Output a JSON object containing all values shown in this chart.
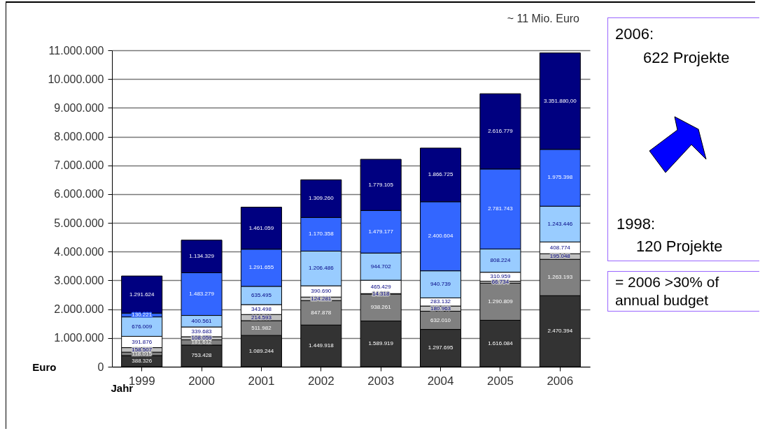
{
  "chart_data": {
    "type": "bar",
    "stacked": true,
    "categories": [
      "1999",
      "2000",
      "2001",
      "2002",
      "2003",
      "2004",
      "2005",
      "2006"
    ],
    "series": [
      {
        "color": "#333333",
        "values": [
          388326,
          753428,
          1089244,
          1449918,
          1589919,
          1297695,
          1616084,
          2470394
        ],
        "value_labels": [
          "388.326",
          "753.428",
          "1.089.244",
          "1.449.918",
          "1.589.919",
          "1.297.695",
          "1.616.084",
          "2.470.394"
        ]
      },
      {
        "color": "#808080",
        "values": [
          118015,
          181612,
          511982,
          847878,
          938261,
          632010,
          1290809,
          1263193
        ],
        "value_labels": [
          "118.015",
          "181.612",
          "511.982",
          "847.878",
          "938.261",
          "632.010",
          "1.290.809",
          "1.263.193"
        ]
      },
      {
        "color": "#c0c0c0",
        "values": [
          158507,
          108059,
          214593,
          124281,
          14318,
          180963,
          66734,
          195048
        ],
        "value_labels": [
          "158.507",
          "108.059",
          "214.593",
          "124.281",
          "14.318",
          "180.963",
          "66.734",
          "195.048"
        ]
      },
      {
        "color": "#ffffff",
        "values": [
          391876,
          339683,
          343498,
          390690,
          465429,
          283132,
          310959,
          408774
        ],
        "value_labels": [
          "391.876",
          "339.683",
          "343.498",
          "390.690",
          "465.429",
          "283.132",
          "310.959",
          "408.774"
        ]
      },
      {
        "color": "#99ccff",
        "values": [
          676009,
          400561,
          635495,
          1206486,
          944702,
          940739,
          808224,
          1243446
        ],
        "value_labels": [
          "676.009",
          "400.561",
          "635.495",
          "1.206.486",
          "944.702",
          "940.739",
          "808.224",
          "1.243.446"
        ]
      },
      {
        "color": "#3366ff",
        "values": [
          130221,
          1483279,
          1291655,
          1170358,
          1479177,
          2400604,
          2781743,
          1975398
        ],
        "value_labels": [
          "130.221",
          "1.483.279",
          "1.291.655",
          "1.170.358",
          "1.479.177",
          "2.400.604",
          "2.781.743",
          "1.975.398"
        ]
      },
      {
        "color": "#000080",
        "values": [
          1291624,
          1134329,
          1461059,
          1309260,
          1779105,
          1866725,
          2616779,
          3351880
        ],
        "value_labels": [
          "1.291.624",
          "1.134.329",
          "1.461.059",
          "1.309.260",
          "1.779.105",
          "1.866.725",
          "2.616.779",
          "3.351.880,00"
        ]
      }
    ],
    "ylim": [
      0,
      11000000
    ],
    "yticks": [
      0,
      {
        "value": 1000000,
        "label": "1.000.000"
      },
      {
        "value": 2000000,
        "label": "2.000.000"
      },
      {
        "value": 3000000,
        "label": "3.000.000"
      },
      {
        "value": 4000000,
        "label": "4.000.000"
      },
      {
        "value": 5000000,
        "label": "5.000.000"
      },
      {
        "value": 6000000,
        "label": "6.000.000"
      },
      {
        "value": 7000000,
        "label": "7.000.000"
      },
      {
        "value": 8000000,
        "label": "8.000.000"
      },
      {
        "value": 9000000,
        "label": "9.000.000"
      },
      {
        "value": 10000000,
        "label": "10.000.000"
      },
      {
        "value": 11000000,
        "label": "11.000.000"
      }
    ],
    "ylabel": "Euro",
    "xlabel": "Jahr",
    "grid": "y",
    "legend": false,
    "annotations": [
      "~ 11 Mio. Euro",
      "2006:",
      "622 Projekte",
      "1998:",
      "120 Projekte",
      "= 2006 >30% of annual budget"
    ]
  }
}
